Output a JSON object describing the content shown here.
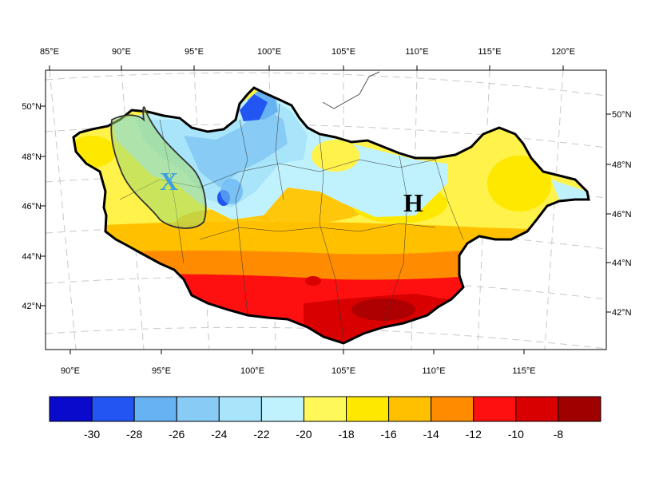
{
  "map": {
    "top_lon_labels": [
      "85°E",
      "90°E",
      "95°E",
      "100°E",
      "105°E",
      "110°E",
      "115°E",
      "120°E"
    ],
    "bottom_lon_labels": [
      "90°E",
      "95°E",
      "100°E",
      "105°E",
      "110°E",
      "115°E"
    ],
    "left_lat_labels": [
      "50°N",
      "48°N",
      "46°N",
      "44°N",
      "42°N"
    ],
    "right_lat_labels": [
      "50°N",
      "48°N",
      "46°N",
      "44°N",
      "42°N"
    ],
    "region_markers": [
      {
        "label": "X",
        "color": "#3aa0e0"
      },
      {
        "label": "H",
        "color": "#000000"
      }
    ]
  },
  "colorbar": {
    "colors": [
      "#0a0acc",
      "#2255f2",
      "#66b2f2",
      "#88ccf6",
      "#a8e4fa",
      "#c0f2fd",
      "#fff85a",
      "#ffe800",
      "#ffc000",
      "#ff8c00",
      "#ff1010",
      "#d80000",
      "#a00000"
    ],
    "labels": [
      "-30",
      "-28",
      "-26",
      "-24",
      "-22",
      "-20",
      "-18",
      "-16",
      "-14",
      "-12",
      "-10",
      "-8"
    ]
  }
}
